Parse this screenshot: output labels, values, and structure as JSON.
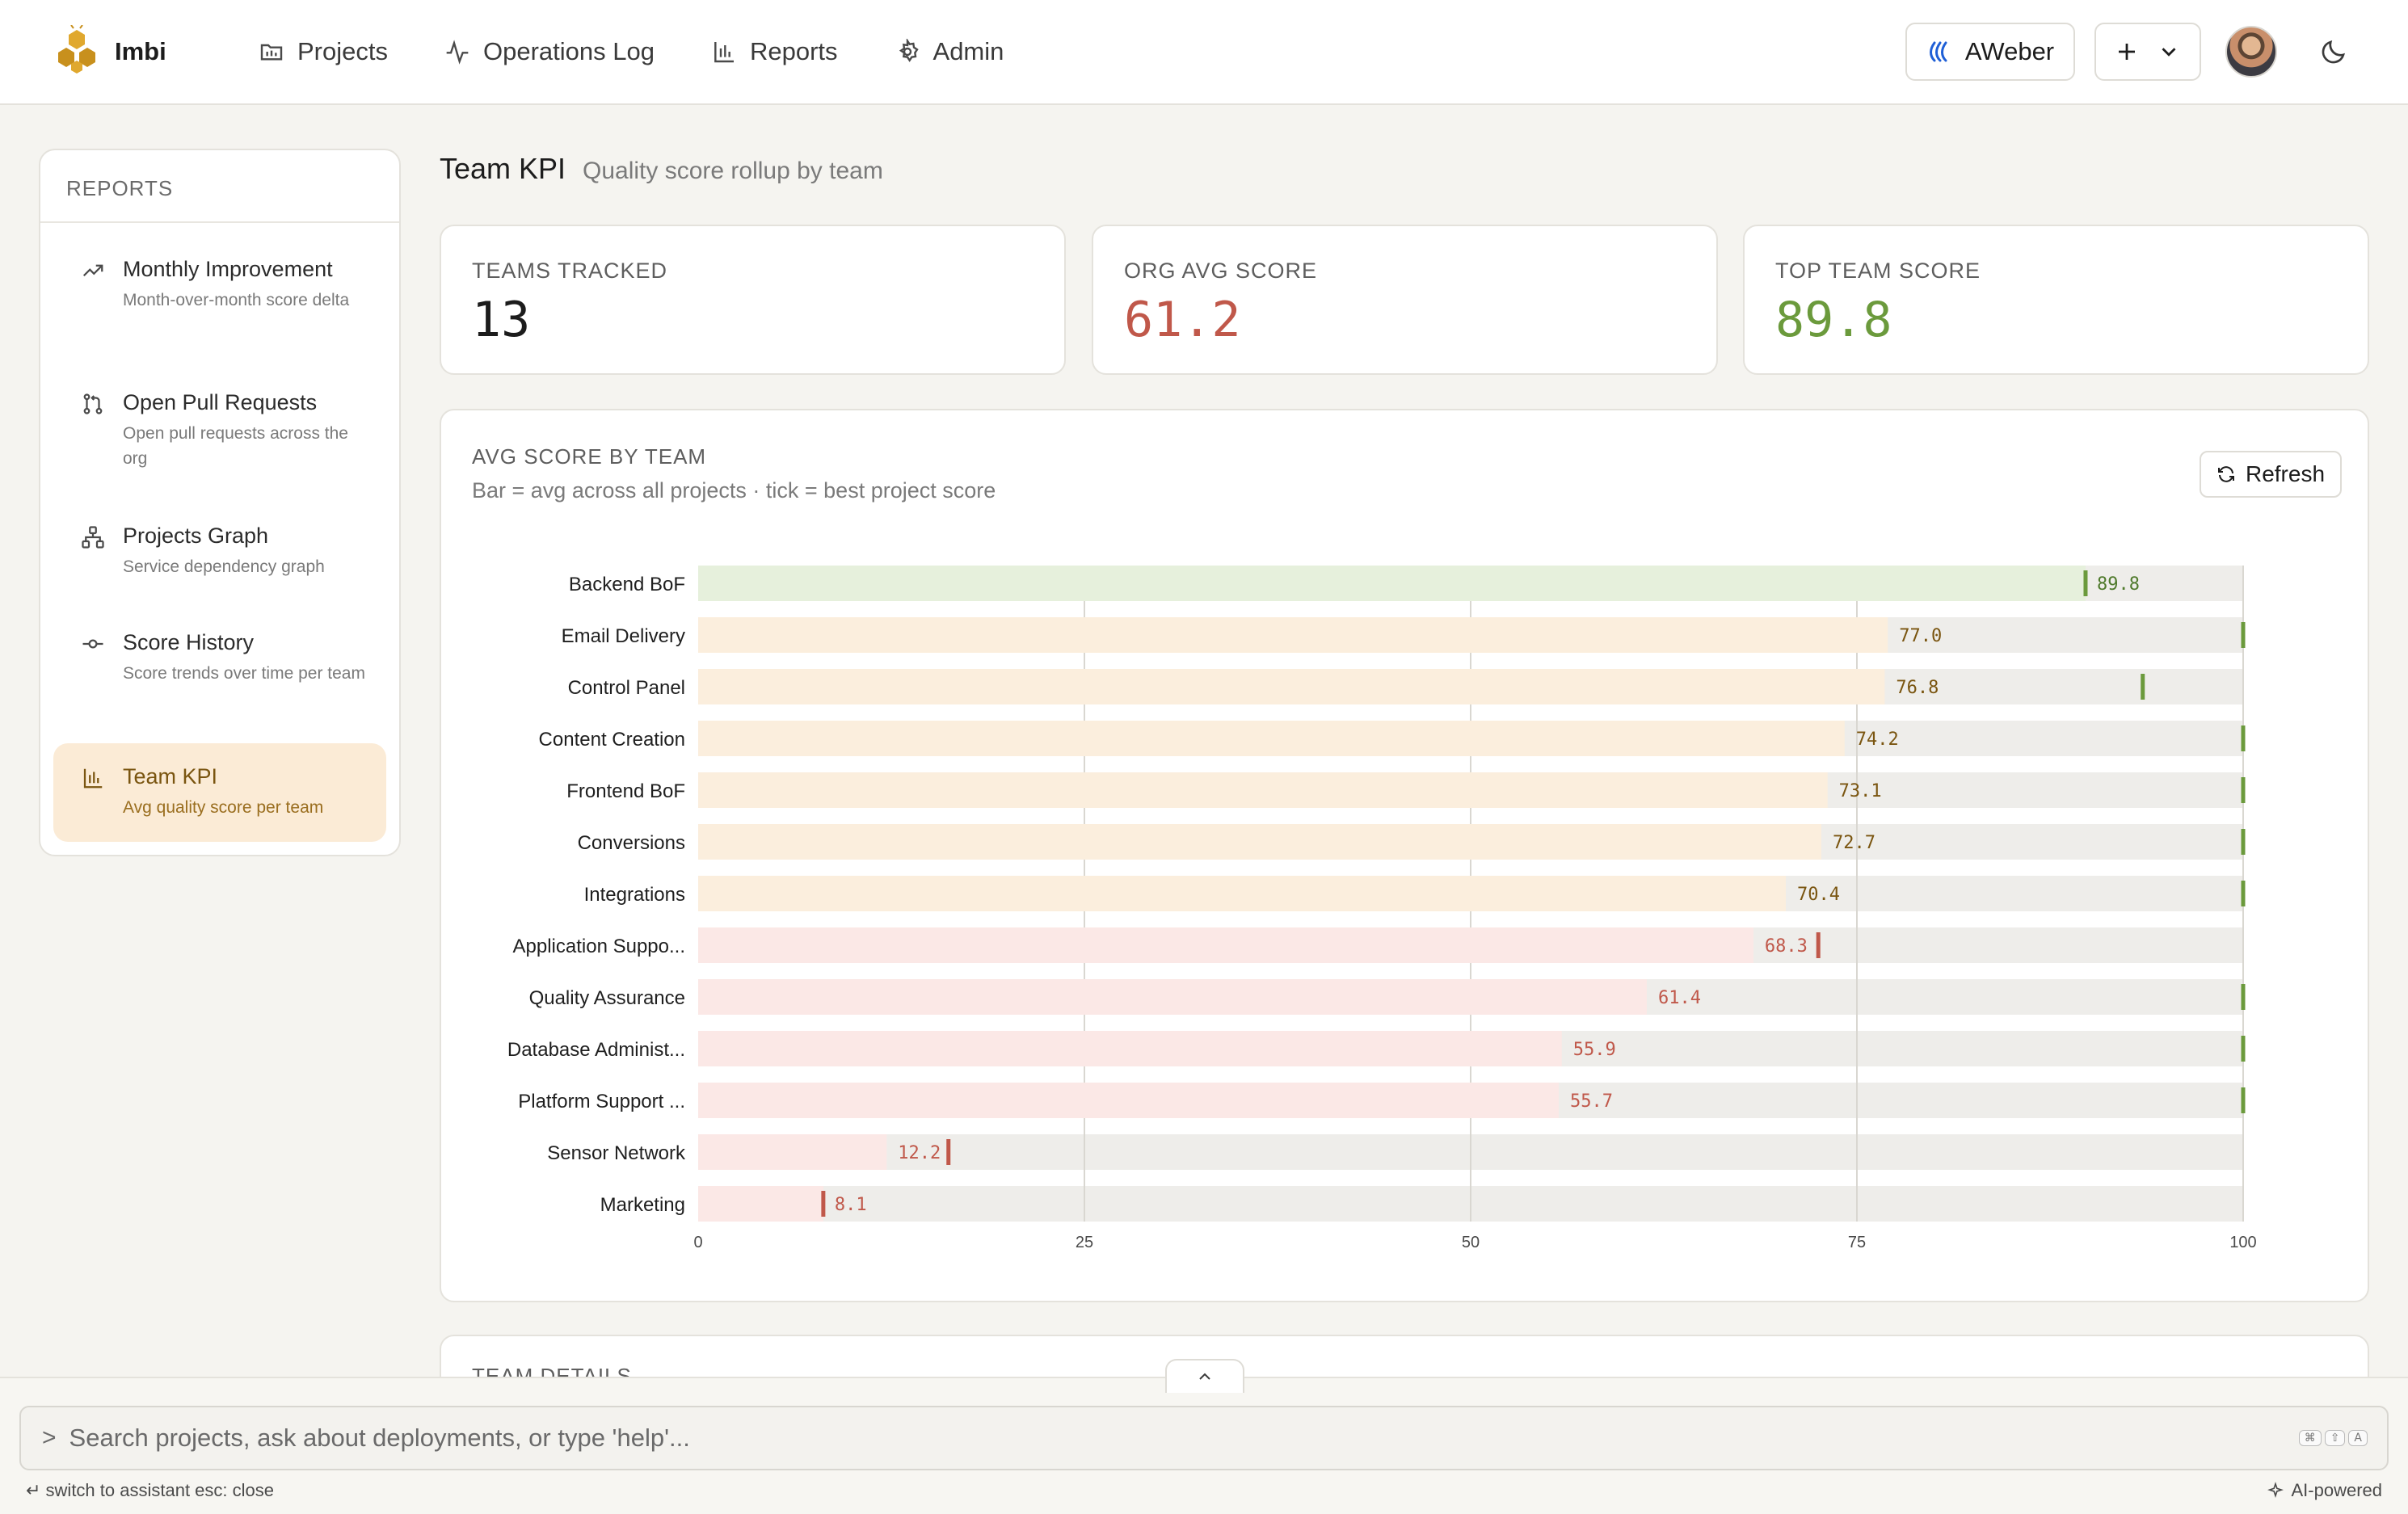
{
  "app": {
    "name": "Imbi"
  },
  "nav": [
    {
      "label": "Projects",
      "icon": "folder-icon"
    },
    {
      "label": "Operations Log",
      "icon": "activity-icon"
    },
    {
      "label": "Reports",
      "icon": "bar-chart-icon"
    },
    {
      "label": "Admin",
      "icon": "gear-icon"
    }
  ],
  "header": {
    "org_label": "AWeber"
  },
  "sidebar": {
    "heading": "REPORTS",
    "items": [
      {
        "title": "Monthly Improvement",
        "desc": "Month-over-month score delta",
        "icon": "trending-up-icon"
      },
      {
        "title": "Open Pull Requests",
        "desc": "Open pull requests across the org",
        "icon": "git-pull-request-icon"
      },
      {
        "title": "Projects Graph",
        "desc": "Service dependency graph",
        "icon": "network-icon"
      },
      {
        "title": "Score History",
        "desc": "Score trends over time per team",
        "icon": "commit-icon"
      },
      {
        "title": "Team KPI",
        "desc": "Avg quality score per team",
        "icon": "bar-chart-icon",
        "active": true
      }
    ]
  },
  "page": {
    "title": "Team KPI",
    "subtitle": "Quality score rollup by team"
  },
  "kpis": [
    {
      "label": "TEAMS TRACKED",
      "value": "13",
      "color": "#1c1c1c"
    },
    {
      "label": "ORG AVG SCORE",
      "value": "61.2",
      "color": "#c0584a"
    },
    {
      "label": "TOP TEAM SCORE",
      "value": "89.8",
      "color": "#6b9a3c"
    }
  ],
  "chart_card": {
    "title": "AVG SCORE BY TEAM",
    "subtitle": "Bar = avg across all projects · tick = best project score",
    "refresh_label": "Refresh"
  },
  "chart_data": {
    "type": "bar",
    "orientation": "horizontal",
    "categories": [
      "Backend BoF",
      "Email Delivery",
      "Control Panel",
      "Content Creation",
      "Frontend BoF",
      "Conversions",
      "Integrations",
      "Application Suppo...",
      "Quality Assurance",
      "Database Administ...",
      "Platform Support ...",
      "Sensor Network",
      "Marketing"
    ],
    "series": [
      {
        "values": [
          89.8,
          77.0,
          76.8,
          74.2,
          73.1,
          72.7,
          70.4,
          68.3,
          61.4,
          55.9,
          55.7,
          12.2,
          8.1
        ]
      },
      {
        "values": [
          89.8,
          100,
          93.5,
          100,
          100,
          100,
          100,
          72.5,
          100,
          100,
          100,
          16.2,
          8.1
        ]
      }
    ],
    "value_labels": [
      "89.8",
      "77.0",
      "76.8",
      "74.2",
      "73.1",
      "72.7",
      "70.4",
      "68.3",
      "61.4",
      "55.9",
      "55.7",
      "12.2",
      "8.1"
    ],
    "xlim": [
      0,
      100
    ],
    "xticks": [
      0,
      25,
      50,
      75,
      100
    ],
    "grid": true,
    "colors": {
      "green_fill": "#e6f0dc",
      "green_tick": "#6b9a3c",
      "green_text": "#4f7a2c",
      "amber_fill": "#fbeedd",
      "amber_tick": "#6b9a3c",
      "amber_text": "#7a5510",
      "red_fill": "#fbe8e6",
      "red_tick": "#c0584a",
      "red_text": "#c0584a",
      "track": "#eeedea",
      "grid": "#d9d7d1"
    }
  },
  "details_card": {
    "title": "TEAM DETAILS"
  },
  "command_bar": {
    "prompt": ">",
    "placeholder": "Search projects, ask about deployments, or type 'help'...",
    "keys": [
      "⌘",
      "⇧",
      "A"
    ],
    "hint_left": "↵ switch to assistant   esc: close",
    "hint_right": "AI-powered"
  }
}
